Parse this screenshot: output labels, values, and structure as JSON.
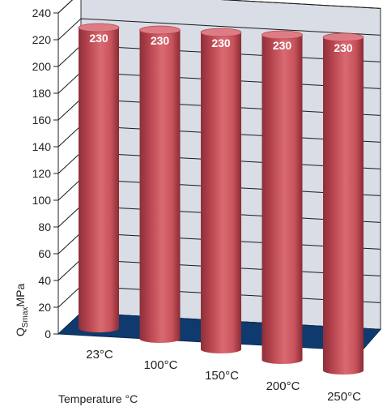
{
  "chart_data": {
    "type": "bar",
    "style": "3d-cylinder",
    "categories": [
      "23°C",
      "100°C",
      "150°C",
      "200°C",
      "250°C"
    ],
    "values": [
      230,
      230,
      230,
      230,
      230
    ],
    "data_labels": [
      "230",
      "230",
      "230",
      "230",
      "230"
    ],
    "xlabel": "Temperature °C",
    "ylabel": {
      "main": "Q",
      "subscript": "Smax",
      "unit": "MPa"
    },
    "ylim": [
      0,
      240
    ],
    "yticks": [
      0,
      20,
      40,
      60,
      80,
      100,
      120,
      140,
      160,
      180,
      200,
      220,
      240
    ],
    "grid": true,
    "legend": "none",
    "colors": {
      "bar": "#c9535c",
      "bar_top": "#de7c85",
      "floor": "#0f3a6e",
      "back_wall": "#d9dde5",
      "grid": "#1a1a1a"
    }
  }
}
